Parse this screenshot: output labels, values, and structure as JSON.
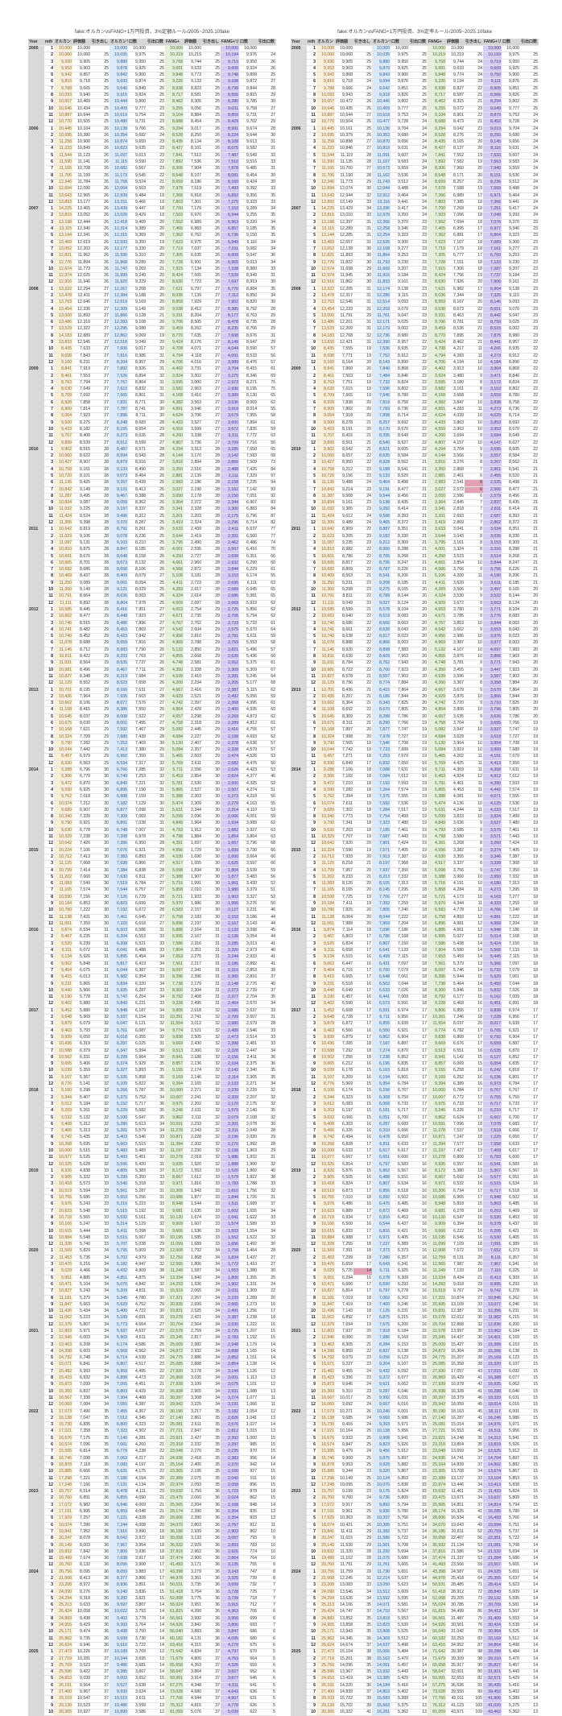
{
  "sheets": [
    {
      "id": "left",
      "title": "fake:オルカンvsFANG+1万円投資、3%定額ルール/2005~2025.10fake",
      "rule": "fixed"
    },
    {
      "id": "right",
      "title": "fake:オルカンvsFANG+1万円投資、3%定率ルール/2005~2025.10fake",
      "rule": "rate"
    }
  ],
  "headers": [
    "Year",
    "mth",
    "オルカン",
    "評価額",
    "引き出し",
    "オルカンリ",
    "口数",
    "引出口数",
    "FANG+",
    "評価額",
    "引き出し",
    "FANG+リ",
    "口数",
    "引出口数"
  ],
  "initial_investment": 10000,
  "fixed_withdrawal_by_year": {
    "2005": 25,
    "2006": 26,
    "2007": 26,
    "2008": 27,
    "2009": 27,
    "2010": 28,
    "2011": 28,
    "2012": 29,
    "2013": 29,
    "2014": 30,
    "2015": 30,
    "2016": 31,
    "2017": 32,
    "2018": 32,
    "2019": 33,
    "2020": 34,
    "2021": 34,
    "2022": 35,
    "2023": 36,
    "2024": 36,
    "2025": 37
  },
  "prices": {
    "2005": {
      "acwi": [
        10000,
        10060,
        9930,
        9953,
        9942,
        9816,
        9788,
        10093,
        10657,
        10646,
        10887,
        10770
      ],
      "fang": [
        10000,
        10219,
        9768,
        9681,
        9848,
        9226,
        8938,
        8717,
        8462,
        9255,
        9104,
        8688
      ]
    },
    "2006": {
      "acwi": [
        10445,
        10695,
        11258,
        11233,
        11544,
        11590,
        11165,
        11706,
        12346,
        12694,
        13643,
        13893
      ],
      "fang": [
        9294,
        8528,
        8435,
        8427,
        7841,
        7892,
        8306,
        8548,
        8659,
        7978,
        7366,
        7803
      ]
    },
    "2007": {
      "acwi": [
        14225,
        13816,
        13198,
        13115,
        13144,
        13469,
        13052,
        12821,
        12776,
        12674,
        12974,
        12916
      ],
      "fang": [
        7700,
        7503,
        7552,
        7465,
        7362,
        7623,
        7719,
        7305,
        7728,
        7915,
        8424,
        8630
      ]
    },
    "2008": {
      "acwi": [
        13322,
        13478,
        13763,
        13454,
        13000,
        13486,
        13529,
        14183,
        13833,
        8435,
        8698,
        9160
      ],
      "fang": [
        7621,
        8036,
        8959,
        9538,
        9331,
        9706,
        9459,
        8770,
        9424,
        4708,
        4794,
        4706
      ]
    },
    "2009": {
      "acwi": [
        8841,
        8461,
        8763,
        8630,
        8709,
        8928,
        8909,
        9064,
        9500,
        9423,
        9707,
        9899
      ],
      "fang": [
        4402,
        3924,
        3595,
        3582,
        4168,
        4382,
        4891,
        4624,
        4433,
        4559,
        4260,
        4807
      ]
    },
    "2010": {
      "acwi": [
        9902,
        10060,
        10427,
        10758,
        10720,
        11136,
        10842,
        11287,
        10834,
        11032,
        11424,
        11306
      ],
      "fang": [
        4294,
        4144,
        3816,
        3350,
        2881,
        2983,
        3027,
        3050,
        3364,
        3341,
        3201,
        3419
      ]
    },
    "2011": {
      "acwi": [
        10642,
        11023,
        11087,
        10810,
        10601,
        10665,
        10682,
        10409,
        11250,
        11360,
        10791,
        11111
      ],
      "fang": [
        3633,
        3644,
        3795,
        4001,
        4250,
        4661,
        4566,
        5106,
        4411,
        4283,
        4324,
        4509
      ]
    },
    "2012": {
      "acwi": [
        10585,
        10662,
        10746,
        10741,
        10740,
        11078,
        11146,
        10811,
        11031,
        10981,
        10827,
        11129
      ],
      "fang": [
        4653,
        4671,
        4767,
        4542,
        4956,
        4969,
        5132,
        4855,
        4748,
        4350,
        4539,
        4260
      ]
    },
    "2013": {
      "acwi": [
        10701,
        10436,
        10662,
        11108,
        10645,
        10675,
        10168,
        10324,
        9790,
        10044,
        9457,
        8930
      ],
      "fang": [
        4667,
        4929,
        4742,
        4864,
        4657,
        4758,
        5082,
        4684,
        5130,
        5084,
        5465,
        5769
      ]
    },
    "2014": {
      "acwi": [
        9288,
        9306,
        9472,
        9590,
        9762,
        10074,
        9689,
        10340,
        9790,
        9630,
        10329,
        10642
      ],
      "fang": [
        5711,
        6453,
        5781,
        5865,
        5388,
        5474,
        5631,
        5099,
        4849,
        4793,
        4798,
        4391
      ]
    },
    "2015": {
      "acwi": [
        10224,
        10712,
        11125,
        10799,
        11202,
        11083,
        11165,
        10590,
        10184,
        10780,
        11138,
        11061
      ],
      "fang": [
        4556,
        4530,
        4517,
        5098,
        5388,
        5716,
        5858,
        5721,
        5970,
        6583,
        6758,
        6896
      ]
    },
    "2016": {
      "acwi": [
        9874,
        9467,
        9520,
        9311,
        9134,
        9062,
        9464,
        9415,
        9231,
        9440,
        9190,
        9402
      ],
      "fang": [
        6886,
        6995,
        7586,
        7804,
        7653,
        7561,
        8097,
        8396,
        7738,
        8300,
        8792,
        9228
      ]
    },
    "2017": {
      "acwi": [
        9452,
        9648,
        9879,
        9463,
        9939,
        10436,
        10588,
        10562,
        9065,
        9039,
        9107,
        8776
      ],
      "fang": [
        9806,
        10391,
        11554,
        9774,
        9838,
        9669,
        9513,
        8941,
        8857,
        9155,
        9169,
        9394
      ]
    },
    "2018": {
      "acwi": [
        9100,
        9344,
        9012,
        9203,
        9032,
        9408,
        9466,
        9742,
        10268,
        10000,
        10077,
        10325
      ],
      "fang": [
        10000,
        10007,
        9975,
        9246,
        9862,
        10591,
        11278,
        10871,
        11394,
        11197,
        10278,
        9935
      ]
    },
    "2019": {
      "acwi": [
        8926,
        9905,
        10418,
        10519,
        10755,
        9976,
        10623,
        10718,
        10166,
        10615,
        10884,
        11328
      ],
      "fang": [
        8172,
        8667,
        9971,
        10306,
        10686,
        8948,
        9681,
        10120,
        9909,
        9666,
        10195,
        11099
      ]
    },
    "2020": {
      "acwi": [
        11569,
        11453,
        10476,
        9029,
        9951,
        10471,
        10827,
        11181,
        11847,
        11436,
        11062,
        12379
      ],
      "fang": [
        12008,
        12759,
        12565,
        11249,
        13334,
        14293,
        15519,
        17321,
        20935,
        19831,
        19278,
        20704
      ]
    },
    "2021": {
      "acwi": [
        12803,
        12946,
        13463,
        14398,
        14792,
        15071,
        15482,
        15423,
        15873,
        15360,
        16567,
        16069
      ],
      "fang": [
        22578,
        23345,
        25009,
        24872,
        24775,
        25085,
        27930,
        26969,
        27939,
        26938,
        30397,
        29942
      ]
    },
    "2022": {
      "acwi": [
        17073,
        16138,
        15730,
        17021,
        16676,
        16574,
        15995,
        16746,
        16878,
        15885,
        17298,
        17248
      ],
      "fang": [
        30190,
        27140,
        25081,
        27721,
        23921,
        23318,
        23048,
        24936,
        25164,
        23305,
        22389,
        22974
      ]
    },
    "2023": {
      "acwi": [
        15757,
        16760,
        17072,
        17191,
        17929,
        18074,
        19841,
        20247,
        20149,
        19832,
        19499,
        20760
      ],
      "fang": [
        19632,
        23475,
        25565,
        28174,
        28606,
        34070,
        36186,
        39058,
        36932,
        37816,
        37474,
        41493
      ]
    },
    "2024": {
      "acwi": [
        20756,
        21668,
        23208,
        24090,
        24294,
        25213,
        26424,
        24883,
        24955,
        25171,
        25962,
        26624
      ],
      "fang": [
        43398,
        44978,
        50531,
        51418,
        52068,
        55024,
        61815,
        56561,
        54926,
        56040,
        60182,
        63416
      ]
    },
    "2025": {
      "acwi": [
        27473,
        27719,
        25769,
        25596,
        24653,
        26191,
        27400,
        29103,
        29139,
        30365
      ],
      "fang": [
        71642,
        71679,
        65658,
        58647,
        59991,
        67275,
        73028,
        77766,
        76312,
        81059
      ]
    }
  },
  "highlights": [
    {
      "sheet": "right",
      "column": "FANG+ 引き出し",
      "year": 2010,
      "month": 6
    },
    {
      "sheet": "right",
      "column": "FANG+ 引き出し",
      "year": 2010,
      "month": 7
    },
    {
      "sheet": "right",
      "column": "オルカン 引き出し",
      "year": 2020,
      "month": 4
    }
  ],
  "colors": {
    "acwi": "#fcefd9",
    "acwi_r": "#dbeafa",
    "fang": "#e5f1da",
    "fang_r": "#d6ccf4",
    "year_col": "#d9d9d9",
    "highlight": "#e3a2b4"
  }
}
